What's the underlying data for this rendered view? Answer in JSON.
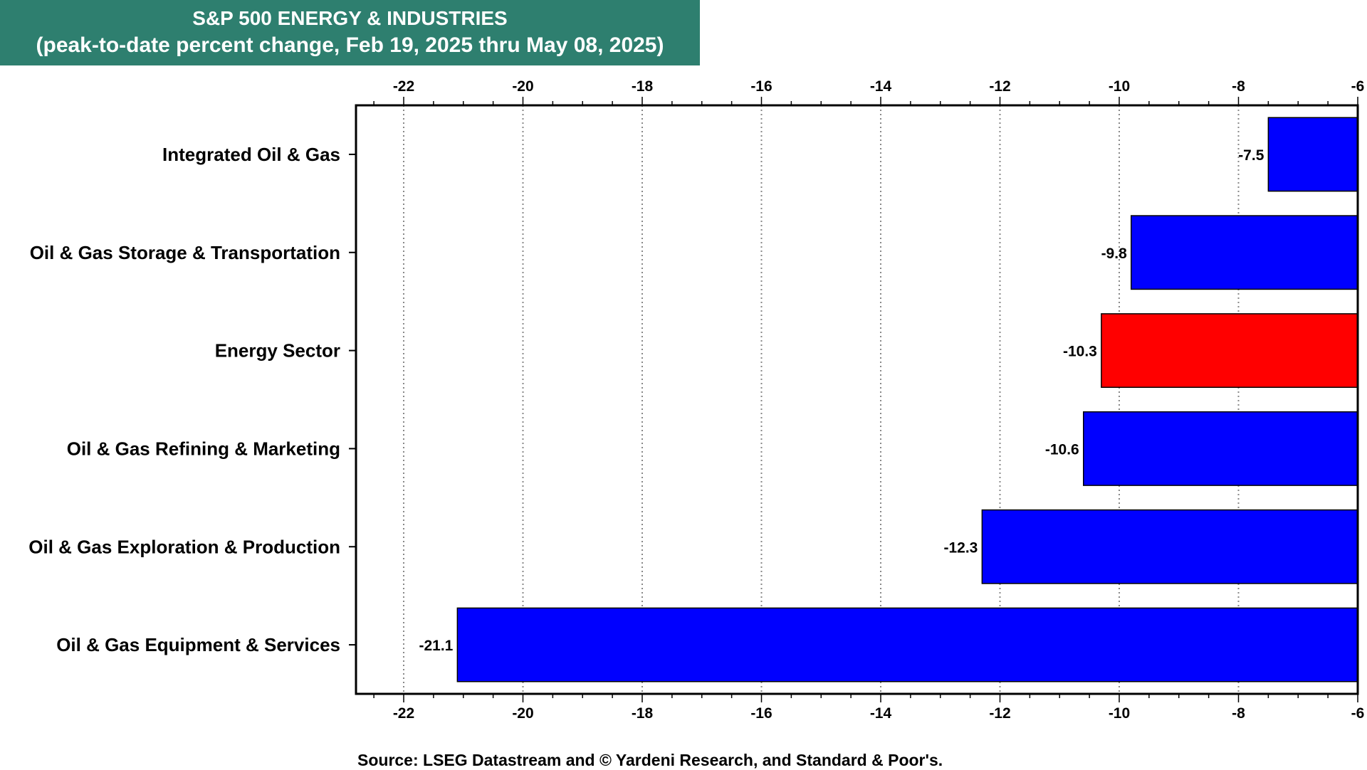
{
  "chart_data": {
    "type": "bar",
    "orientation": "horizontal",
    "title": "S&P 500 ENERGY & INDUSTRIES",
    "subtitle": "(peak-to-date percent change, Feb 19, 2025 thru May 08, 2025)",
    "categories": [
      "Integrated Oil & Gas",
      "Oil & Gas Storage & Transportation",
      "Energy Sector",
      "Oil & Gas Refining & Marketing",
      "Oil & Gas Exploration & Production",
      "Oil & Gas Equipment & Services"
    ],
    "values": [
      -7.5,
      -9.8,
      -10.3,
      -10.6,
      -12.3,
      -21.1
    ],
    "value_labels": [
      "-7.5",
      "-9.8",
      "-10.3",
      "-10.6",
      "-12.3",
      "-21.1"
    ],
    "highlight_category": "Energy Sector",
    "colors": {
      "default": "#0000ff",
      "highlight": "#ff0000",
      "header": "#2e7f6f"
    },
    "xlim": [
      -22.8,
      -6
    ],
    "xticks": [
      -22,
      -20,
      -18,
      -16,
      -14,
      -12,
      -10,
      -8,
      -6
    ],
    "x_axis_ticks_top_and_bottom": true,
    "grid": "vertical dotted",
    "legend": "none",
    "source": "Source: LSEG Datastream and © Yardeni Research, and Standard & Poor's."
  }
}
